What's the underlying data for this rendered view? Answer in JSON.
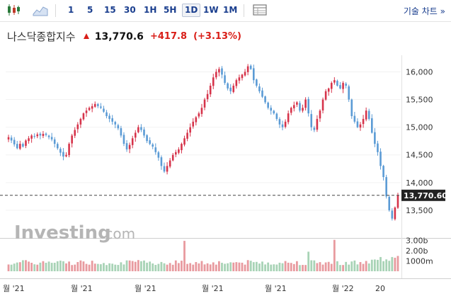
{
  "toolbar": {
    "timeframes": [
      "1",
      "5",
      "15",
      "30",
      "1H",
      "5H",
      "1D",
      "1W",
      "1M"
    ],
    "active_timeframe": "1D",
    "chart_type_label": "기술 차트 »"
  },
  "instrument": {
    "name": "나스닥종합지수",
    "last": "13,770.6",
    "change": "+417.8",
    "change_pct": "(+3.13%)",
    "current_price_label": "13,770.60"
  },
  "colors": {
    "up": "#d6334a",
    "down": "#5b9bd5",
    "vol_up": "#e89a9f",
    "vol_down": "#a8d3b6",
    "price_tag": "#222222"
  },
  "watermark": {
    "main": "Investing",
    "suffix": ".com"
  },
  "chart_data": {
    "type": "candlestick",
    "y_ticks": [
      "16,000",
      "15,500",
      "15,000",
      "14,500",
      "14,000",
      "13,500"
    ],
    "y_tick_values": [
      16000,
      15500,
      15000,
      14500,
      14000,
      13500
    ],
    "ylim": [
      13000,
      16300
    ],
    "x_labels": [
      "월 '21",
      "월 '21",
      "월 '21",
      "월 '21",
      "월 '21",
      "월 '22",
      "20"
    ],
    "volume_ticks": [
      "3.00b",
      "2.00b",
      "1000m"
    ],
    "volume_tick_values": [
      3000,
      2000,
      1000
    ],
    "volume_max": 3300,
    "close": [
      14820,
      14760,
      14690,
      14620,
      14700,
      14650,
      14760,
      14800,
      14850,
      14830,
      14870,
      14850,
      14880,
      14860,
      14820,
      14780,
      14700,
      14620,
      14540,
      14470,
      14500,
      14700,
      14850,
      14950,
      15050,
      15150,
      15250,
      15300,
      15350,
      15380,
      15420,
      15380,
      15350,
      15280,
      15200,
      15150,
      15100,
      15050,
      14980,
      14850,
      14700,
      14600,
      14680,
      14800,
      14900,
      15000,
      14950,
      14850,
      14750,
      14700,
      14650,
      14550,
      14450,
      14300,
      14200,
      14300,
      14400,
      14500,
      14550,
      14600,
      14700,
      14800,
      14900,
      15000,
      15100,
      15180,
      15250,
      15350,
      15500,
      15600,
      15750,
      15900,
      16000,
      16050,
      15950,
      15800,
      15700,
      15650,
      15750,
      15850,
      15900,
      15950,
      16000,
      16100,
      16050,
      15850,
      15750,
      15650,
      15550,
      15450,
      15350,
      15300,
      15250,
      15150,
      15050,
      15000,
      15100,
      15250,
      15350,
      15400,
      15450,
      15300,
      15350,
      15500,
      15250,
      15000,
      14950,
      15150,
      15300,
      15500,
      15650,
      15700,
      15800,
      15850,
      15750,
      15700,
      15800,
      15750,
      15500,
      15200,
      15100,
      15000,
      15050,
      15150,
      15300,
      15150,
      14900,
      14700,
      14550,
      14300,
      14100,
      13750,
      13500,
      13350,
      13550,
      13770
    ]
  }
}
